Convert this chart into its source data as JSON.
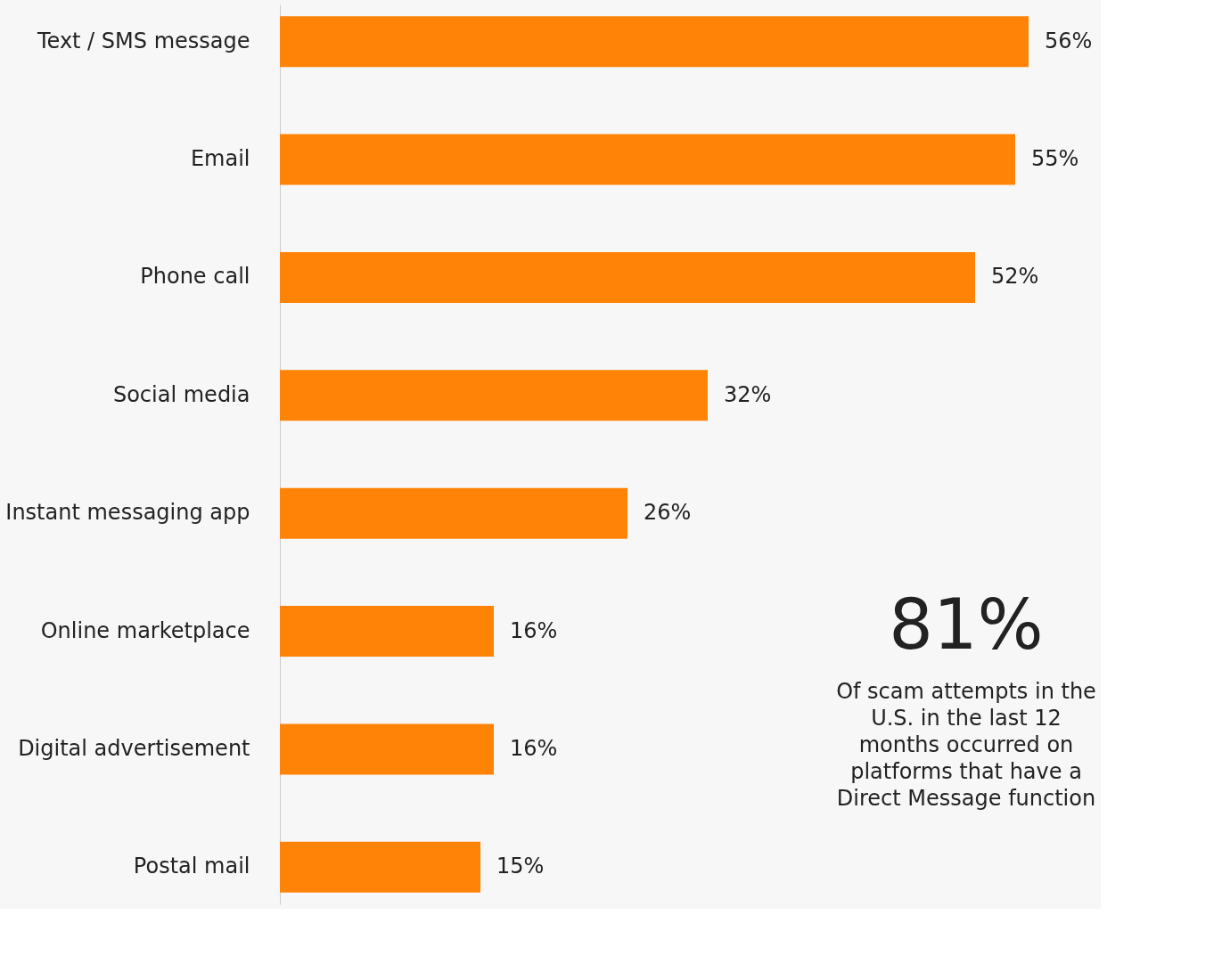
{
  "chart_data": {
    "type": "bar",
    "orientation": "horizontal",
    "categories": [
      "Text / SMS message",
      "Email",
      "Phone call",
      "Social media",
      "Instant messaging app",
      "Online marketplace",
      "Digital advertisement",
      "Postal mail"
    ],
    "values": [
      56,
      55,
      52,
      32,
      26,
      16,
      16,
      15
    ],
    "value_labels": [
      "56%",
      "55%",
      "52%",
      "32%",
      "26%",
      "16%",
      "16%",
      "15%"
    ],
    "color": "#ff8307",
    "grid": false,
    "tick_labels": "y",
    "annotations": [
      "81%",
      "Of scam attempts in the U.S. in the last 12 months occurred on platforms that have a Direct Message function"
    ]
  }
}
